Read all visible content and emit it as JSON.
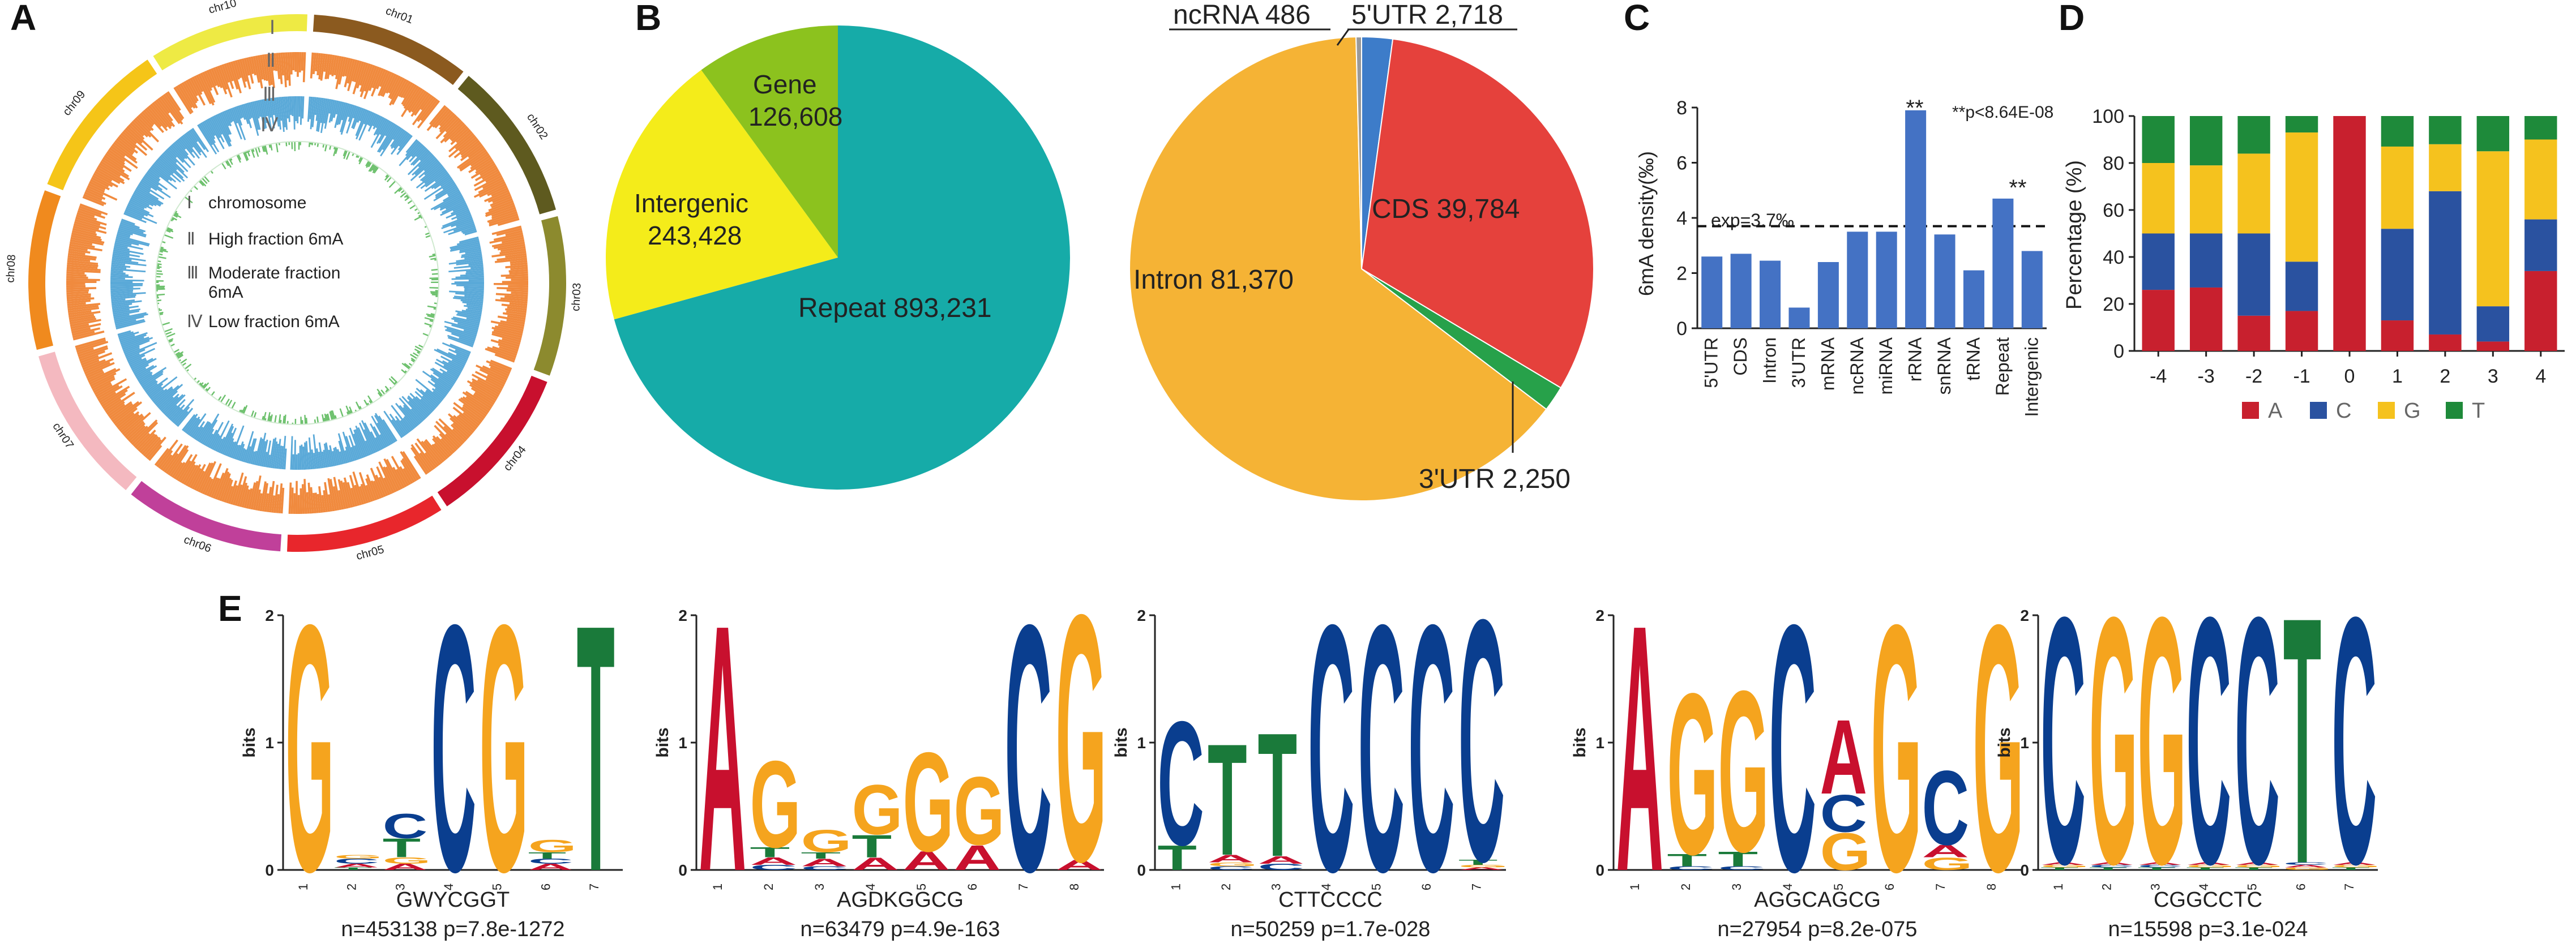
{
  "panels": {
    "a": "A",
    "b": "B",
    "c": "C",
    "d": "D",
    "e": "E"
  },
  "circos": {
    "chromosomes": [
      "chr01",
      "chr02",
      "chr03",
      "chr04",
      "chr05",
      "chr06",
      "chr07",
      "chr08",
      "chr09",
      "chr10"
    ],
    "chrom_colors": [
      "#8B5A1F",
      "#5E5A1F",
      "#8C8A2E",
      "#C8102E",
      "#E8262C",
      "#C0409A",
      "#F4B9C0",
      "#F08A1E",
      "#F5C518",
      "#EEEA44"
    ],
    "track_numerals": [
      "Ⅰ",
      "Ⅱ",
      "Ⅲ",
      "Ⅳ"
    ],
    "legend": [
      {
        "numeral": "Ⅰ",
        "label": "chromosome"
      },
      {
        "numeral": "Ⅱ",
        "label": "High fraction 6mA"
      },
      {
        "numeral": "Ⅲ",
        "label": "Moderate fraction"
      },
      {
        "numeral": "",
        "label": "6mA"
      },
      {
        "numeral": "Ⅳ",
        "label": "Low fraction 6mA"
      }
    ],
    "colors": {
      "high": "#F08A3E",
      "moderate": "#5AA9D8",
      "low": "#6CC06C"
    }
  },
  "chart_data": [
    {
      "type": "pie",
      "title": "",
      "labels": [
        "Repeat",
        "Intergenic",
        "Gene"
      ],
      "values": [
        893231,
        243428,
        126608
      ],
      "display": [
        "Repeat 893,231",
        "Intergenic",
        "243,428",
        "Gene",
        "126,608"
      ],
      "colors": [
        "#16ABA8",
        "#F4EC1A",
        "#8CC21E"
      ]
    },
    {
      "type": "pie",
      "title": "",
      "labels": [
        "5'UTR",
        "CDS",
        "3'UTR",
        "Intron",
        "ncRNA"
      ],
      "values": [
        2718,
        39784,
        2250,
        81370,
        486
      ],
      "display": [
        "ncRNA 486",
        "5'UTR 2,718",
        "CDS 39,784",
        "Intron 81,370",
        "3'UTR 2,250"
      ],
      "colors": [
        "#3D7CC9",
        "#E5413C",
        "#27A14A",
        "#F5B335",
        "#9A9A9A"
      ]
    },
    {
      "type": "bar",
      "categories": [
        "5'UTR",
        "CDS",
        "Intron",
        "3'UTR",
        "mRNA",
        "ncRNA",
        "miRNA",
        "rRNA",
        "snRNA",
        "tRNA",
        "Repeat",
        "Intergenic"
      ],
      "values": [
        2.6,
        2.7,
        2.45,
        0.75,
        2.4,
        3.5,
        3.5,
        7.9,
        3.4,
        2.1,
        4.7,
        2.8
      ],
      "ylabel": "6mA density(‰)",
      "ylim": [
        0,
        8
      ],
      "yticks": [
        "0",
        "2",
        "4",
        "6",
        "8"
      ],
      "reference_line": 3.7,
      "reference_label": "exp=3.7‰",
      "significance": "**p<8.64E-08",
      "significant_marks": [
        "**",
        "**"
      ],
      "significant_categories": [
        "rRNA",
        "Repeat"
      ],
      "color": "#4472C4"
    },
    {
      "type": "bar",
      "stacked": true,
      "categories": [
        "-4",
        "-3",
        "-2",
        "-1",
        "0",
        "1",
        "2",
        "3",
        "4"
      ],
      "ylabel": "Percentage (%)",
      "ylim": [
        0,
        100
      ],
      "yticks": [
        "0",
        "20",
        "40",
        "60",
        "80",
        "100"
      ],
      "series": [
        {
          "name": "A",
          "color": "#C8202E",
          "values": [
            26,
            27,
            15,
            17,
            100,
            13,
            7,
            4,
            34
          ]
        },
        {
          "name": "C",
          "color": "#2A52A0",
          "values": [
            24,
            23,
            35,
            21,
            0,
            39,
            61,
            15,
            22
          ]
        },
        {
          "name": "G",
          "color": "#F5C21E",
          "values": [
            30,
            29,
            34,
            55,
            0,
            35,
            20,
            66,
            34
          ]
        },
        {
          "name": "T",
          "color": "#1E8A3A",
          "values": [
            20,
            21,
            16,
            7,
            0,
            13,
            12,
            15,
            10
          ]
        }
      ],
      "legend": [
        "A",
        "C",
        "G",
        "T"
      ]
    }
  ],
  "logos": [
    {
      "motif": "GWYCGGT",
      "n": "n=453138",
      "p": "p=7.8e-1272",
      "columns": [
        [
          [
            "G",
            1.99
          ]
        ],
        [
          [
            "T",
            0.02
          ],
          [
            "A",
            0.03
          ],
          [
            "C",
            0.04
          ],
          [
            "G",
            0.03
          ]
        ],
        [
          [
            "A",
            0.05
          ],
          [
            "G",
            0.05
          ],
          [
            "T",
            0.15
          ],
          [
            "C",
            0.2
          ]
        ],
        [
          [
            "C",
            1.99
          ]
        ],
        [
          [
            "G",
            1.99
          ]
        ],
        [
          [
            "A",
            0.05
          ],
          [
            "C",
            0.04
          ],
          [
            "T",
            0.05
          ],
          [
            "G",
            0.1
          ]
        ],
        [
          [
            "T",
            1.99
          ]
        ]
      ]
    },
    {
      "motif": "AGDKGGCG",
      "n": "n=63479",
      "p": "p=4.9e-163",
      "columns": [
        [
          [
            "A",
            1.99
          ]
        ],
        [
          [
            "C",
            0.04
          ],
          [
            "A",
            0.06
          ],
          [
            "T",
            0.08
          ],
          [
            "G",
            0.7
          ]
        ],
        [
          [
            "C",
            0.03
          ],
          [
            "A",
            0.06
          ],
          [
            "T",
            0.05
          ],
          [
            "G",
            0.18
          ]
        ],
        [
          [
            "A",
            0.1
          ],
          [
            "T",
            0.18
          ],
          [
            "G",
            0.4
          ]
        ],
        [
          [
            "A",
            0.15
          ],
          [
            "G",
            0.8
          ]
        ],
        [
          [
            "A",
            0.2
          ],
          [
            "G",
            0.55
          ]
        ],
        [
          [
            "C",
            1.99
          ]
        ],
        [
          [
            "A",
            0.08
          ],
          [
            "G",
            1.99
          ]
        ]
      ]
    },
    {
      "motif": "CTTCCCC",
      "n": "n=50259",
      "p": "p=1.7e-028",
      "columns": [
        [
          [
            "T",
            0.2
          ],
          [
            "C",
            1.0
          ]
        ],
        [
          [
            "C",
            0.03
          ],
          [
            "G",
            0.03
          ],
          [
            "A",
            0.06
          ],
          [
            "T",
            0.9
          ]
        ],
        [
          [
            "C",
            0.05
          ],
          [
            "A",
            0.06
          ],
          [
            "T",
            1.0
          ]
        ],
        [
          [
            "C",
            1.99
          ]
        ],
        [
          [
            "C",
            1.99
          ]
        ],
        [
          [
            "C",
            1.99
          ]
        ],
        [
          [
            "A",
            0.02
          ],
          [
            "G",
            0.02
          ],
          [
            "T",
            0.04
          ],
          [
            "C",
            1.95
          ]
        ]
      ]
    },
    {
      "motif": "AGGCAGCG",
      "n": "n=27954",
      "p": "p=8.2e-075",
      "columns": [
        [
          [
            "A",
            1.99
          ]
        ],
        [
          [
            "C",
            0.03
          ],
          [
            "T",
            0.1
          ],
          [
            "G",
            1.3
          ]
        ],
        [
          [
            "C",
            0.03
          ],
          [
            "T",
            0.12
          ],
          [
            "G",
            1.3
          ]
        ],
        [
          [
            "C",
            1.99
          ]
        ],
        [
          [
            "G",
            0.3
          ],
          [
            "C",
            0.3
          ],
          [
            "A",
            0.6
          ]
        ],
        [
          [
            "G",
            1.99
          ]
        ],
        [
          [
            "G",
            0.1
          ],
          [
            "A",
            0.1
          ],
          [
            "C",
            0.6
          ]
        ],
        [
          [
            "G",
            1.99
          ]
        ]
      ]
    },
    {
      "motif": "CGGCCTC",
      "n": "n=15598",
      "p": "p=3.1e-024",
      "columns": [
        [
          [
            "T",
            0.02
          ],
          [
            "G",
            0.02
          ],
          [
            "A",
            0.02
          ],
          [
            "C",
            1.99
          ]
        ],
        [
          [
            "T",
            0.02
          ],
          [
            "C",
            0.02
          ],
          [
            "A",
            0.02
          ],
          [
            "G",
            1.99
          ]
        ],
        [
          [
            "T",
            0.02
          ],
          [
            "C",
            0.02
          ],
          [
            "A",
            0.02
          ],
          [
            "G",
            1.99
          ]
        ],
        [
          [
            "T",
            0.02
          ],
          [
            "G",
            0.02
          ],
          [
            "A",
            0.02
          ],
          [
            "C",
            1.99
          ]
        ],
        [
          [
            "T",
            0.02
          ],
          [
            "G",
            0.02
          ],
          [
            "A",
            0.02
          ],
          [
            "C",
            1.99
          ]
        ],
        [
          [
            "G",
            0.02
          ],
          [
            "A",
            0.02
          ],
          [
            "C",
            0.02
          ],
          [
            "T",
            1.99
          ]
        ],
        [
          [
            "T",
            0.02
          ],
          [
            "G",
            0.02
          ],
          [
            "A",
            0.02
          ],
          [
            "C",
            1.99
          ]
        ]
      ]
    }
  ],
  "logo_axis": {
    "ylabel": "bits",
    "yticks": [
      "0",
      "1",
      "2"
    ]
  },
  "base_colors": {
    "A": "#C8102E",
    "C": "#0A3E8F",
    "G": "#F5A41E",
    "T": "#1A7A3A"
  }
}
